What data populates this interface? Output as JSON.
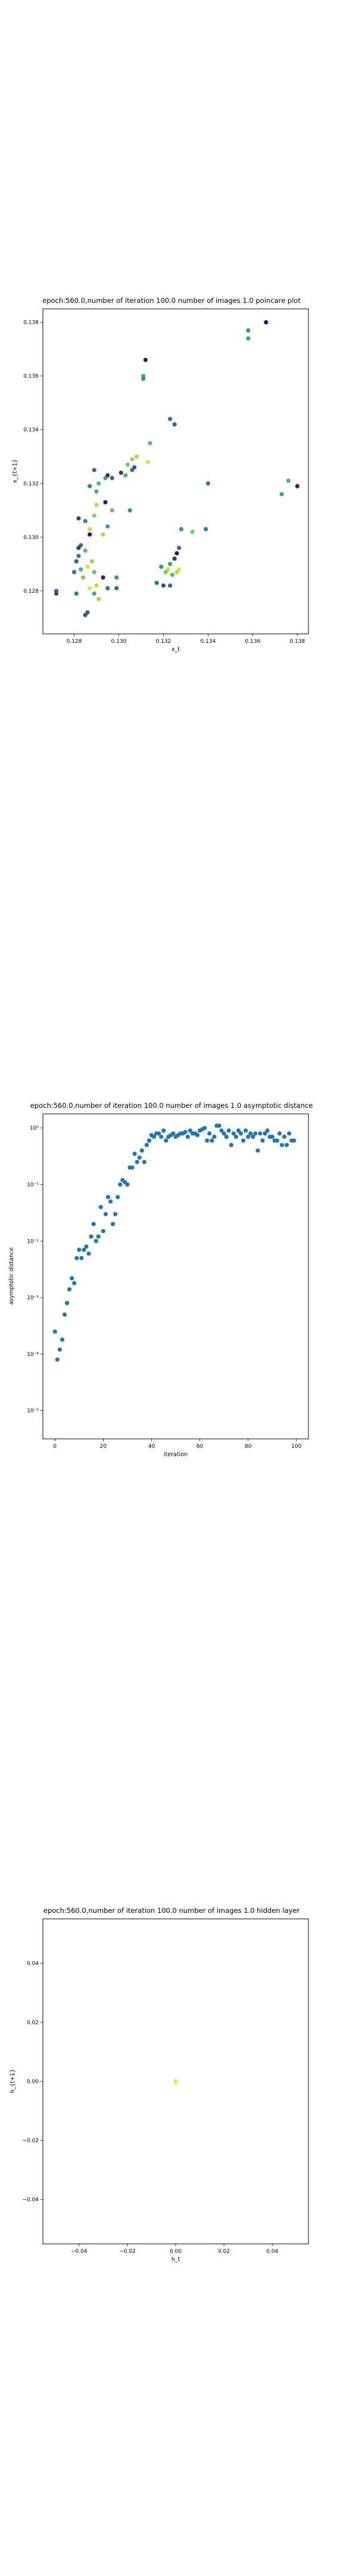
{
  "chart_data": [
    {
      "type": "scatter",
      "title": "epoch:560.0,number of iteration 100.0 number of images 1.0 poincare plot",
      "xlabel": "x_t",
      "ylabel": "x_{t+1}",
      "xlim": [
        0.1266,
        0.1385
      ],
      "ylim": [
        0.1264,
        0.1385
      ],
      "xticks": [
        0.128,
        0.13,
        0.132,
        0.134,
        0.136,
        0.138
      ],
      "xtick_labels": [
        "0.128",
        "0.130",
        "0.132",
        "0.134",
        "0.136",
        "0.138"
      ],
      "yticks": [
        0.128,
        0.13,
        0.132,
        0.134,
        0.136,
        0.138
      ],
      "ytick_labels": [
        "0.128",
        "0.130",
        "0.132",
        "0.134",
        "0.136",
        "0.138"
      ],
      "colormap": "viridis",
      "grid": false,
      "points": [
        {
          "x": 0.1366,
          "y": 0.138,
          "c": 0.02
        },
        {
          "x": 0.1358,
          "y": 0.1377,
          "c": 0.55
        },
        {
          "x": 0.1358,
          "y": 0.1374,
          "c": 0.58
        },
        {
          "x": 0.1312,
          "y": 0.1366,
          "c": 0.05
        },
        {
          "x": 0.1311,
          "y": 0.136,
          "c": 0.62
        },
        {
          "x": 0.1311,
          "y": 0.1359,
          "c": 0.52
        },
        {
          "x": 0.1323,
          "y": 0.1344,
          "c": 0.38
        },
        {
          "x": 0.1325,
          "y": 0.1342,
          "c": 0.32
        },
        {
          "x": 0.1314,
          "y": 0.1335,
          "c": 0.7
        },
        {
          "x": 0.1308,
          "y": 0.133,
          "c": 0.88
        },
        {
          "x": 0.1306,
          "y": 0.1329,
          "c": 0.85
        },
        {
          "x": 0.1304,
          "y": 0.1327,
          "c": 0.78
        },
        {
          "x": 0.1307,
          "y": 0.1326,
          "c": 0.25
        },
        {
          "x": 0.1306,
          "y": 0.1325,
          "c": 0.4
        },
        {
          "x": 0.1313,
          "y": 0.1328,
          "c": 0.95
        },
        {
          "x": 0.1301,
          "y": 0.1324,
          "c": 0.15
        },
        {
          "x": 0.1303,
          "y": 0.1323,
          "c": 0.68
        },
        {
          "x": 0.1297,
          "y": 0.1322,
          "c": 0.3
        },
        {
          "x": 0.1295,
          "y": 0.1323,
          "c": 0.1
        },
        {
          "x": 0.1294,
          "y": 0.1322,
          "c": 0.6
        },
        {
          "x": 0.1291,
          "y": 0.132,
          "c": 0.72
        },
        {
          "x": 0.1289,
          "y": 0.1325,
          "c": 0.35
        },
        {
          "x": 0.129,
          "y": 0.1317,
          "c": 0.65
        },
        {
          "x": 0.1287,
          "y": 0.1319,
          "c": 0.48
        },
        {
          "x": 0.1294,
          "y": 0.1313,
          "c": 0.05
        },
        {
          "x": 0.129,
          "y": 0.1312,
          "c": 0.9
        },
        {
          "x": 0.1297,
          "y": 0.131,
          "c": 0.75
        },
        {
          "x": 0.1305,
          "y": 0.131,
          "c": 0.55
        },
        {
          "x": 0.1289,
          "y": 0.1308,
          "c": 0.82
        },
        {
          "x": 0.1285,
          "y": 0.1306,
          "c": 0.5
        },
        {
          "x": 0.1282,
          "y": 0.1307,
          "c": 0.2
        },
        {
          "x": 0.1287,
          "y": 0.1303,
          "c": 0.92
        },
        {
          "x": 0.1295,
          "y": 0.1304,
          "c": 0.6
        },
        {
          "x": 0.1287,
          "y": 0.1301,
          "c": 0.02
        },
        {
          "x": 0.1293,
          "y": 0.1301,
          "c": 0.88
        },
        {
          "x": 0.1283,
          "y": 0.1297,
          "c": 0.38
        },
        {
          "x": 0.1282,
          "y": 0.1296,
          "c": 0.15
        },
        {
          "x": 0.1285,
          "y": 0.1295,
          "c": 0.7
        },
        {
          "x": 0.1282,
          "y": 0.1293,
          "c": 0.45
        },
        {
          "x": 0.1288,
          "y": 0.1291,
          "c": 0.85
        },
        {
          "x": 0.1281,
          "y": 0.1291,
          "c": 0.3
        },
        {
          "x": 0.1286,
          "y": 0.1289,
          "c": 0.95
        },
        {
          "x": 0.1283,
          "y": 0.1288,
          "c": 0.65
        },
        {
          "x": 0.1289,
          "y": 0.1287,
          "c": 0.75
        },
        {
          "x": 0.128,
          "y": 0.1287,
          "c": 0.4
        },
        {
          "x": 0.1284,
          "y": 0.1285,
          "c": 0.8
        },
        {
          "x": 0.1293,
          "y": 0.1285,
          "c": 0.08
        },
        {
          "x": 0.1299,
          "y": 0.1285,
          "c": 0.55
        },
        {
          "x": 0.129,
          "y": 0.1282,
          "c": 0.9
        },
        {
          "x": 0.1287,
          "y": 0.1281,
          "c": 0.98
        },
        {
          "x": 0.1272,
          "y": 0.128,
          "c": 0.35
        },
        {
          "x": 0.1272,
          "y": 0.1279,
          "c": 0.2
        },
        {
          "x": 0.1281,
          "y": 0.1279,
          "c": 0.45
        },
        {
          "x": 0.1289,
          "y": 0.1279,
          "c": 0.62
        },
        {
          "x": 0.1295,
          "y": 0.1281,
          "c": 0.42
        },
        {
          "x": 0.1299,
          "y": 0.1281,
          "c": 0.35
        },
        {
          "x": 0.1286,
          "y": 0.1272,
          "c": 0.3
        },
        {
          "x": 0.1285,
          "y": 0.1271,
          "c": 0.25
        },
        {
          "x": 0.1291,
          "y": 0.1277,
          "c": 0.85
        },
        {
          "x": 0.1317,
          "y": 0.1283,
          "c": 0.4
        },
        {
          "x": 0.132,
          "y": 0.1282,
          "c": 0.22
        },
        {
          "x": 0.1323,
          "y": 0.1282,
          "c": 0.3
        },
        {
          "x": 0.1319,
          "y": 0.1289,
          "c": 0.55
        },
        {
          "x": 0.1322,
          "y": 0.1288,
          "c": 0.92
        },
        {
          "x": 0.1321,
          "y": 0.1287,
          "c": 0.8
        },
        {
          "x": 0.1324,
          "y": 0.1286,
          "c": 0.7
        },
        {
          "x": 0.1326,
          "y": 0.1287,
          "c": 0.88
        },
        {
          "x": 0.1327,
          "y": 0.1288,
          "c": 0.95
        },
        {
          "x": 0.1323,
          "y": 0.129,
          "c": 0.6
        },
        {
          "x": 0.1325,
          "y": 0.1292,
          "c": 0.15
        },
        {
          "x": 0.1326,
          "y": 0.1294,
          "c": 0.05
        },
        {
          "x": 0.1327,
          "y": 0.1296,
          "c": 0.35
        },
        {
          "x": 0.1328,
          "y": 0.1303,
          "c": 0.55
        },
        {
          "x": 0.1333,
          "y": 0.1302,
          "c": 0.78
        },
        {
          "x": 0.1339,
          "y": 0.1303,
          "c": 0.45
        },
        {
          "x": 0.134,
          "y": 0.132,
          "c": 0.42
        },
        {
          "x": 0.1376,
          "y": 0.1321,
          "c": 0.65
        },
        {
          "x": 0.138,
          "y": 0.1319,
          "c": 0.1
        },
        {
          "x": 0.1373,
          "y": 0.1316,
          "c": 0.6
        }
      ]
    },
    {
      "type": "scatter",
      "title": "epoch:560.0,number of iteration 100.0  number of images 1.0 asymptotic distance",
      "xlabel": "iteration",
      "ylabel": "asymptotic distance",
      "yscale": "log",
      "xlim": [
        -5,
        105
      ],
      "ylim_exp": [
        -5.5,
        0.25
      ],
      "xticks": [
        0,
        20,
        40,
        60,
        80,
        100
      ],
      "xtick_labels": [
        "0",
        "20",
        "40",
        "60",
        "80",
        "100"
      ],
      "ytick_exps": [
        -5,
        -4,
        -3,
        -2,
        -1,
        0
      ],
      "ytick_labels": [
        "10⁻⁵",
        "10⁻⁴",
        "10⁻³",
        "10⁻²",
        "10⁻¹",
        "10⁰"
      ],
      "marker_color": "#1f77b4",
      "grid": false,
      "x": [
        0,
        1,
        2,
        3,
        4,
        5,
        6,
        7,
        8,
        9,
        10,
        11,
        12,
        13,
        14,
        15,
        16,
        17,
        18,
        19,
        20,
        21,
        22,
        23,
        24,
        25,
        26,
        27,
        28,
        29,
        30,
        31,
        32,
        33,
        34,
        35,
        36,
        37,
        38,
        39,
        40,
        41,
        42,
        43,
        44,
        45,
        46,
        47,
        48,
        49,
        50,
        51,
        52,
        53,
        54,
        55,
        56,
        57,
        58,
        59,
        60,
        61,
        62,
        63,
        64,
        65,
        66,
        67,
        68,
        69,
        70,
        71,
        72,
        73,
        74,
        75,
        76,
        77,
        78,
        79,
        80,
        81,
        82,
        83,
        84,
        85,
        86,
        87,
        88,
        89,
        90,
        91,
        92,
        93,
        94,
        95,
        96,
        97,
        98,
        99
      ],
      "y": [
        0.00025,
        8e-05,
        0.00012,
        0.00018,
        0.0005,
        0.0008,
        0.0014,
        0.0022,
        0.0018,
        0.005,
        0.007,
        0.005,
        0.007,
        0.008,
        0.006,
        0.012,
        0.02,
        0.01,
        0.012,
        0.04,
        0.015,
        0.03,
        0.06,
        0.05,
        0.02,
        0.03,
        0.06,
        0.1,
        0.12,
        0.11,
        0.1,
        0.2,
        0.2,
        0.35,
        0.25,
        0.3,
        0.4,
        0.25,
        0.5,
        0.6,
        0.75,
        0.7,
        0.8,
        0.8,
        0.7,
        0.9,
        0.6,
        0.7,
        0.75,
        0.8,
        0.7,
        0.75,
        0.8,
        0.8,
        0.85,
        0.7,
        0.9,
        0.8,
        0.8,
        0.75,
        0.9,
        0.95,
        1.0,
        0.6,
        0.8,
        0.6,
        0.7,
        1.1,
        1.1,
        0.9,
        0.8,
        0.7,
        0.9,
        0.5,
        0.8,
        0.7,
        0.9,
        0.8,
        0.6,
        0.9,
        0.7,
        0.8,
        0.7,
        0.8,
        0.4,
        0.8,
        0.6,
        0.8,
        0.9,
        0.7,
        0.7,
        0.6,
        0.6,
        0.8,
        0.5,
        0.7,
        0.5,
        0.8,
        0.6,
        0.6
      ]
    },
    {
      "type": "scatter",
      "title": "epoch:560.0,number of iteration 100.0  number of images 1.0 hidden layer",
      "xlabel": "h_t",
      "ylabel": "h_{t+1}",
      "xlim": [
        -0.055,
        0.055
      ],
      "ylim": [
        -0.055,
        0.055
      ],
      "xticks": [
        -0.04,
        -0.02,
        0.0,
        0.02,
        0.04
      ],
      "xtick_labels": [
        "−0.04",
        "−0.02",
        "0.00",
        "0.02",
        "0.04"
      ],
      "yticks": [
        -0.04,
        -0.02,
        0.0,
        0.02,
        0.04
      ],
      "ytick_labels": [
        "−0.04",
        "−0.02",
        "0.00",
        "0.02",
        "0.04"
      ],
      "marker_color": "#fde725",
      "grid": false,
      "points": [
        {
          "x": 0.0,
          "y": 0.0
        }
      ]
    }
  ]
}
